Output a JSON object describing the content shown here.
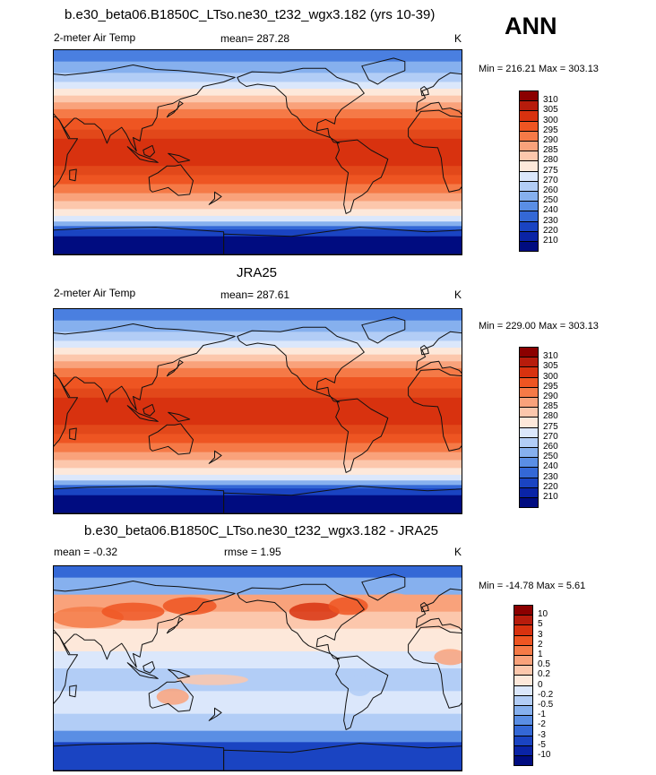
{
  "season": "ANN",
  "panels": [
    {
      "title": "b.e30_beta06.B1850C_LTso.ne30_t232_wgx3.182 (yrs 10-39)",
      "left_label": "2-meter Air Temp",
      "center_label": "mean= 287.28",
      "right_label": "K",
      "minmax": "Min = 216.21 Max = 303.13"
    },
    {
      "title": "JRA25",
      "left_label": "2-meter Air Temp",
      "center_label": "mean= 287.61",
      "right_label": "K",
      "minmax": "Min = 229.00 Max = 303.13"
    },
    {
      "title": "b.e30_beta06.B1850C_LTso.ne30_t232_wgx3.182 - JRA25",
      "left_label": "mean =  -0.32",
      "center_label": "rmse =   1.95",
      "right_label": "K",
      "minmax": "Min = -14.78 Max =   5.61"
    }
  ],
  "chart_data": [
    {
      "type": "heatmap",
      "title": "b.e30_beta06.B1850C_LTso.ne30_t232_wgx3.182 (yrs 10-39)",
      "variable": "2-meter Air Temp",
      "units": "K",
      "mean": 287.28,
      "min": 216.21,
      "max": 303.13,
      "colorbar_levels": [
        310,
        305,
        300,
        295,
        290,
        285,
        280,
        275,
        270,
        260,
        250,
        240,
        230,
        220,
        210
      ],
      "colorbar_colors": [
        "#8b0000",
        "#b71c0c",
        "#d8320f",
        "#ee5522",
        "#f57a47",
        "#f9a27b",
        "#fcc7ac",
        "#fde8da",
        "#dbe7fb",
        "#b2cdf6",
        "#86b0ee",
        "#5a8ee4",
        "#3468d6",
        "#1a44c2",
        "#0a24a6",
        "#000c80"
      ]
    },
    {
      "type": "heatmap",
      "title": "JRA25",
      "variable": "2-meter Air Temp",
      "units": "K",
      "mean": 287.61,
      "min": 229.0,
      "max": 303.13,
      "colorbar_levels": [
        310,
        305,
        300,
        295,
        290,
        285,
        280,
        275,
        270,
        260,
        250,
        240,
        230,
        220,
        210
      ],
      "colorbar_colors": [
        "#8b0000",
        "#b71c0c",
        "#d8320f",
        "#ee5522",
        "#f57a47",
        "#f9a27b",
        "#fcc7ac",
        "#fde8da",
        "#dbe7fb",
        "#b2cdf6",
        "#86b0ee",
        "#5a8ee4",
        "#3468d6",
        "#1a44c2",
        "#0a24a6",
        "#000c80"
      ]
    },
    {
      "type": "heatmap",
      "title": "b.e30_beta06.B1850C_LTso.ne30_t232_wgx3.182 - JRA25",
      "units": "K",
      "mean": -0.32,
      "rmse": 1.95,
      "min": -14.78,
      "max": 5.61,
      "colorbar_levels": [
        "10",
        "5",
        "3",
        "2",
        "1",
        "0.5",
        "0.2",
        "0",
        "-0.2",
        "-0.5",
        "-1",
        "-2",
        "-3",
        "-5",
        "-10"
      ],
      "colorbar_colors": [
        "#8b0000",
        "#b71c0c",
        "#d8320f",
        "#ee5522",
        "#f57a47",
        "#f9a27b",
        "#fcc7ac",
        "#fde8da",
        "#dbe7fb",
        "#b2cdf6",
        "#86b0ee",
        "#5a8ee4",
        "#3468d6",
        "#1a44c2",
        "#0a24a6",
        "#000c80"
      ]
    }
  ]
}
